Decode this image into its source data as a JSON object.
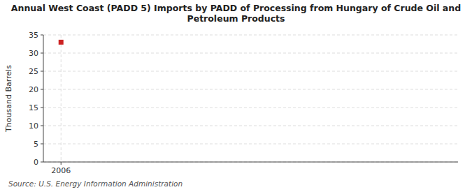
{
  "chart_data": {
    "type": "scatter",
    "title": "Annual West Coast (PADD 5) Imports by PADD of Processing from Hungary of Crude Oil and\nPetroleum Products",
    "ylabel": "Thousand Barrels",
    "source": "Source: U.S. Energy Information Administration",
    "x": [
      2006
    ],
    "values": [
      33
    ],
    "color": "#cc2222",
    "marker": "square",
    "xlim": [
      2005.6,
      2015.0
    ],
    "xticks": [
      2006
    ],
    "ylim": [
      0,
      35
    ],
    "yticks": [
      0,
      5,
      10,
      15,
      20,
      25,
      30,
      35
    ],
    "grid": true
  }
}
